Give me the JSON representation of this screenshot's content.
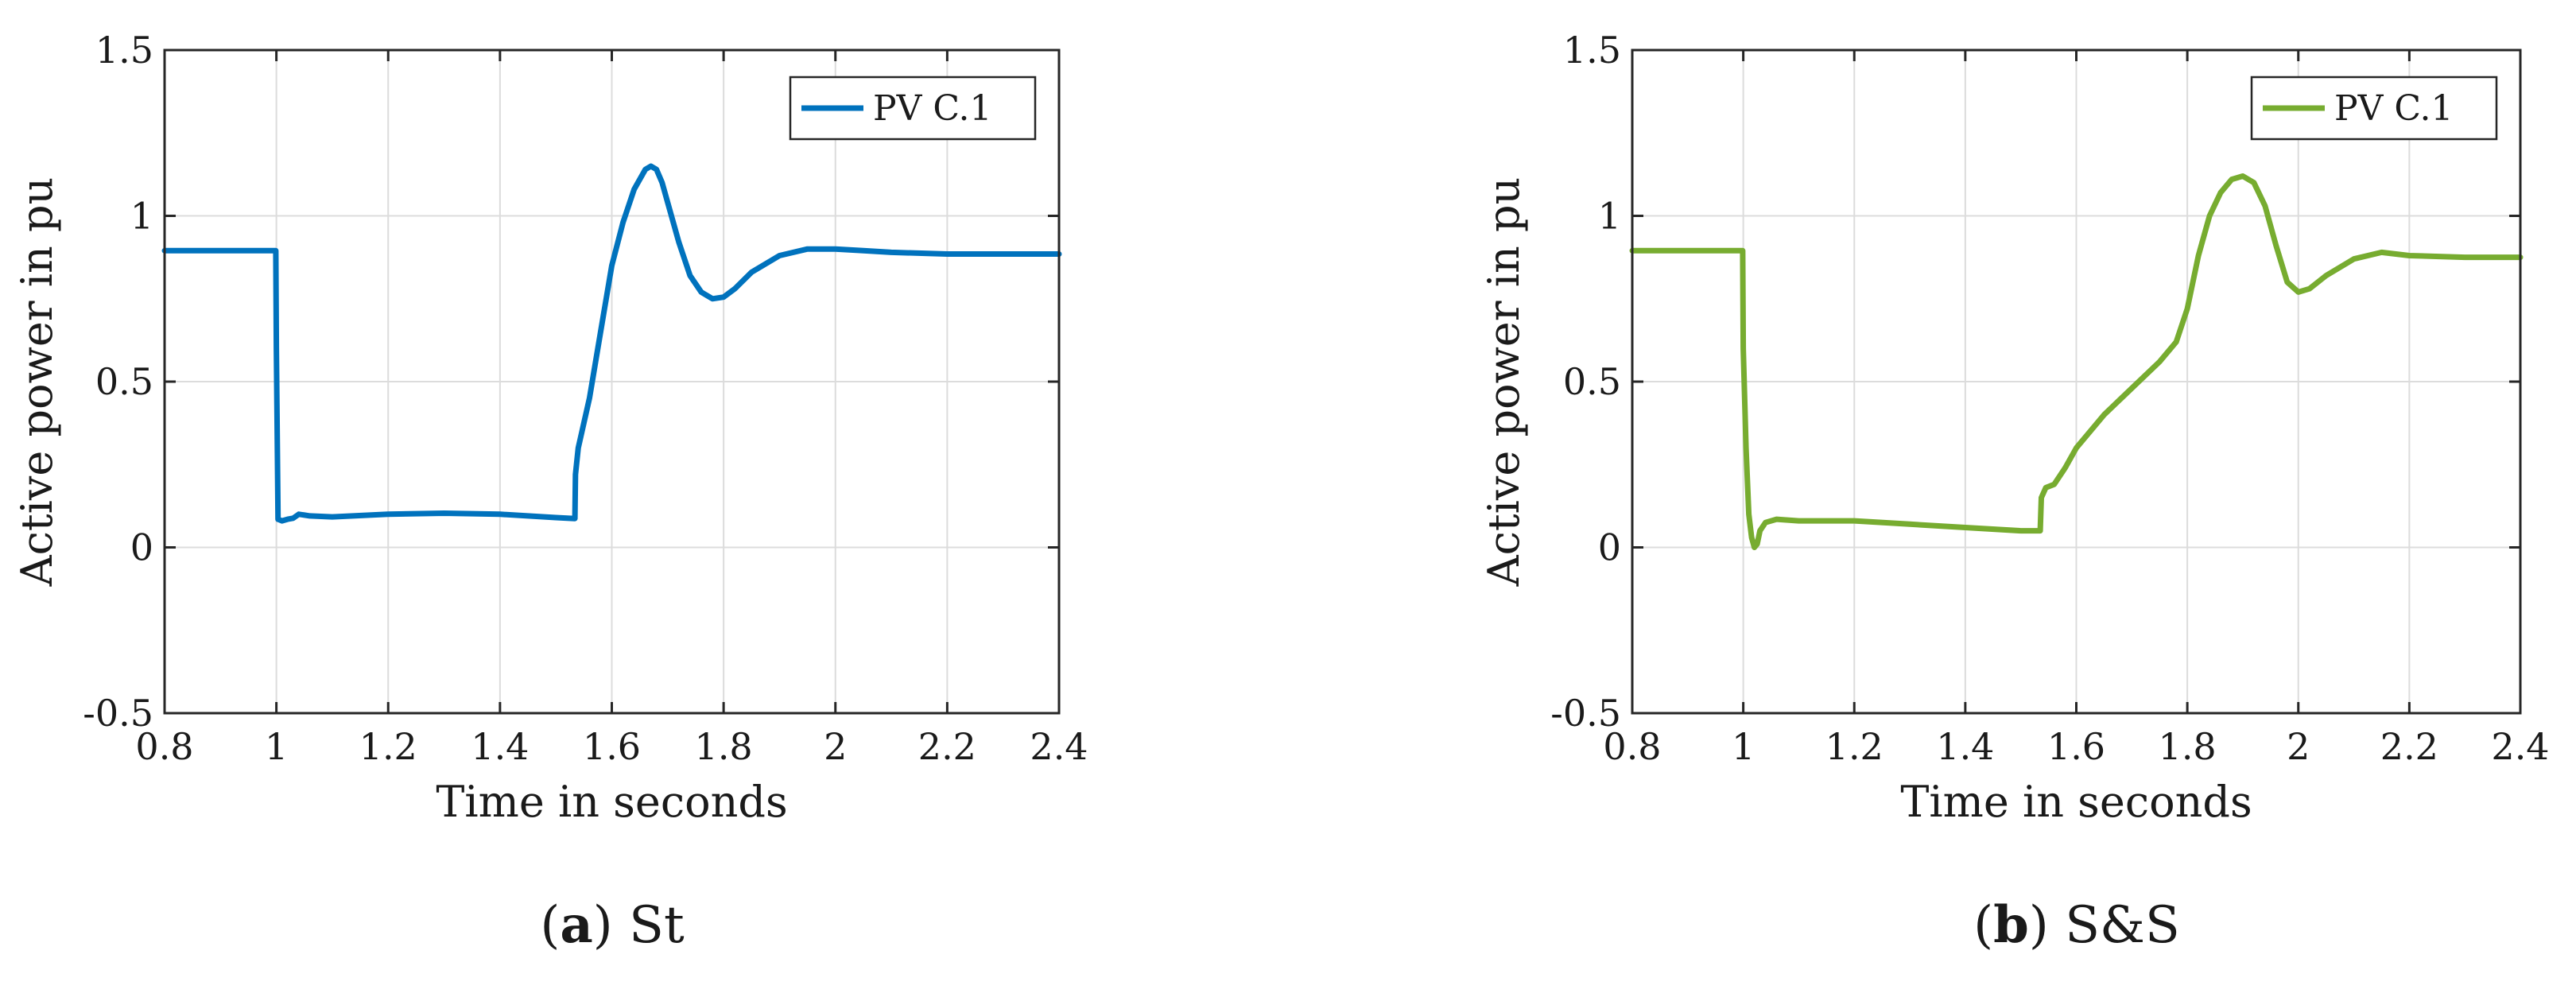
{
  "chart_data": [
    {
      "type": "line",
      "panel_letter": "a",
      "panel_name": "St",
      "xlabel": "Time in seconds",
      "ylabel": "Active power in pu",
      "xlim": [
        0.8,
        2.4
      ],
      "ylim": [
        -0.5,
        1.5
      ],
      "xticks": [
        "0.8",
        "1",
        "1.2",
        "1.4",
        "1.6",
        "1.8",
        "2",
        "2.2",
        "2.4"
      ],
      "yticks": [
        "-0.5",
        "0",
        "0.5",
        "1",
        "1.5"
      ],
      "grid": true,
      "legend_position": "top-right",
      "series": [
        {
          "name": "PV C.1",
          "color": "#0072BD",
          "x": [
            0.8,
            0.999,
            1.0,
            1.003,
            1.01,
            1.02,
            1.03,
            1.04,
            1.06,
            1.1,
            1.2,
            1.3,
            1.4,
            1.5,
            1.534,
            1.535,
            1.54,
            1.56,
            1.58,
            1.6,
            1.62,
            1.64,
            1.66,
            1.67,
            1.68,
            1.69,
            1.7,
            1.72,
            1.74,
            1.76,
            1.78,
            1.8,
            1.82,
            1.85,
            1.9,
            1.95,
            2.0,
            2.05,
            2.1,
            2.2,
            2.3,
            2.4
          ],
          "y": [
            0.895,
            0.895,
            0.6,
            0.085,
            0.08,
            0.085,
            0.088,
            0.1,
            0.095,
            0.092,
            0.1,
            0.103,
            0.1,
            0.09,
            0.087,
            0.22,
            0.3,
            0.45,
            0.65,
            0.85,
            0.98,
            1.08,
            1.14,
            1.15,
            1.14,
            1.1,
            1.04,
            0.92,
            0.82,
            0.77,
            0.75,
            0.755,
            0.78,
            0.83,
            0.88,
            0.9,
            0.9,
            0.895,
            0.89,
            0.885,
            0.885,
            0.885
          ]
        }
      ]
    },
    {
      "type": "line",
      "panel_letter": "b",
      "panel_name": "S&S",
      "xlabel": "Time in seconds",
      "ylabel": "Active power in pu",
      "xlim": [
        0.8,
        2.4
      ],
      "ylim": [
        -0.5,
        1.5
      ],
      "xticks": [
        "0.8",
        "1",
        "1.2",
        "1.4",
        "1.6",
        "1.8",
        "2",
        "2.2",
        "2.4"
      ],
      "yticks": [
        "-0.5",
        "0",
        "0.5",
        "1",
        "1.5"
      ],
      "grid": true,
      "legend_position": "top-right",
      "series": [
        {
          "name": "PV C.1",
          "color": "#77AC30",
          "x": [
            0.8,
            0.999,
            1.0,
            1.005,
            1.01,
            1.015,
            1.02,
            1.025,
            1.03,
            1.04,
            1.06,
            1.1,
            1.2,
            1.3,
            1.4,
            1.5,
            1.535,
            1.537,
            1.545,
            1.56,
            1.58,
            1.6,
            1.65,
            1.7,
            1.75,
            1.78,
            1.8,
            1.82,
            1.84,
            1.86,
            1.88,
            1.9,
            1.92,
            1.94,
            1.96,
            1.98,
            2.0,
            2.02,
            2.05,
            2.1,
            2.15,
            2.2,
            2.3,
            2.4
          ],
          "y": [
            0.895,
            0.895,
            0.6,
            0.3,
            0.1,
            0.03,
            0.0,
            0.01,
            0.05,
            0.075,
            0.085,
            0.08,
            0.08,
            0.07,
            0.06,
            0.05,
            0.05,
            0.15,
            0.18,
            0.19,
            0.24,
            0.3,
            0.4,
            0.48,
            0.56,
            0.62,
            0.72,
            0.88,
            1.0,
            1.07,
            1.11,
            1.12,
            1.1,
            1.03,
            0.91,
            0.8,
            0.77,
            0.78,
            0.82,
            0.87,
            0.89,
            0.88,
            0.875,
            0.875
          ]
        }
      ]
    }
  ]
}
